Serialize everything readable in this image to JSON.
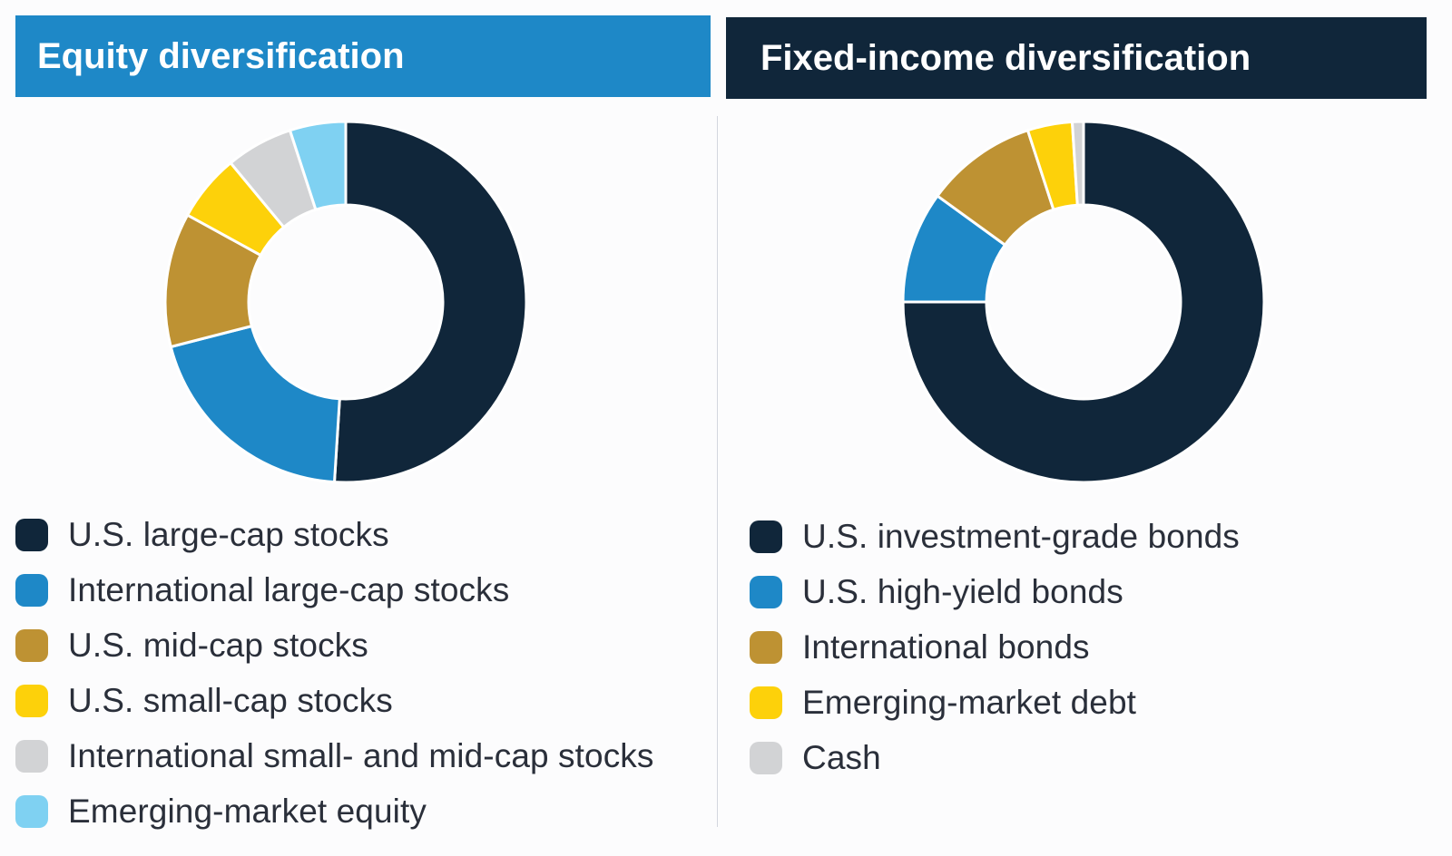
{
  "chart_data": [
    {
      "type": "pie",
      "title": "Equity diversification",
      "header_color": "#1e88c7",
      "categories": [
        "U.S. large-cap stocks",
        "International large-cap stocks",
        "U.S. mid-cap stocks",
        "U.S. small-cap stocks",
        "International small- and mid-cap stocks",
        "Emerging-market equity"
      ],
      "values": [
        51,
        20,
        12,
        6,
        6,
        5
      ],
      "colors": [
        "#10263a",
        "#1e88c7",
        "#be9233",
        "#fdd10a",
        "#d2d3d5",
        "#7fd1f2"
      ],
      "legend": "bottom-left"
    },
    {
      "type": "pie",
      "title": "Fixed-income diversification",
      "header_color": "#10263a",
      "categories": [
        "U.S. investment-grade bonds",
        "U.S. high-yield bonds",
        "International bonds",
        "Emerging-market debt",
        "Cash"
      ],
      "values": [
        75,
        10,
        10,
        4,
        1
      ],
      "colors": [
        "#10263a",
        "#1e88c7",
        "#be9233",
        "#fdd10a",
        "#d2d3d5"
      ],
      "legend": "bottom-left"
    }
  ]
}
